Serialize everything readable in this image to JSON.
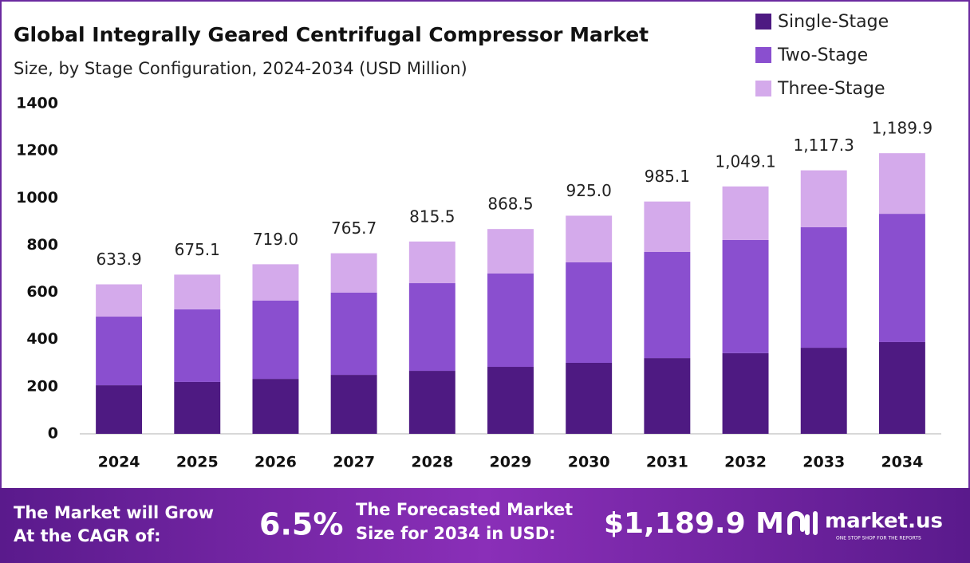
{
  "chart_data": {
    "type": "stacked-bar",
    "title": "Global Integrally Geared Centrifugal Compressor Market",
    "subtitle": "Size, by Stage Configuration, 2024-2034 (USD Million)",
    "categories": [
      "2024",
      "2025",
      "2026",
      "2027",
      "2028",
      "2029",
      "2030",
      "2031",
      "2032",
      "2033",
      "2034"
    ],
    "series": [
      {
        "name": "Single-Stage",
        "color": "#4e1a82",
        "values": [
          206,
          220,
          233,
          250,
          267,
          284,
          301,
          321,
          342,
          365,
          389
        ]
      },
      {
        "name": "Two-Stage",
        "color": "#8a4fcf",
        "values": [
          291,
          308,
          332,
          349,
          372,
          396,
          426,
          450,
          480,
          511,
          544
        ]
      },
      {
        "name": "Three-Stage",
        "color": "#d4aaeb",
        "values": [
          136.9,
          147.1,
          154.0,
          166.7,
          176.5,
          188.5,
          198.0,
          214.1,
          227.1,
          241.3,
          256.9
        ]
      }
    ],
    "totals": {
      "values": [
        633.9,
        675.1,
        719.0,
        765.7,
        815.5,
        868.5,
        925.0,
        985.1,
        1049.1,
        1117.3,
        1189.9
      ],
      "value_labels": [
        "633.9",
        "675.1",
        "719.0",
        "765.7",
        "815.5",
        "868.5",
        "925.0",
        "985.1",
        "1,049.1",
        "1,117.3",
        "1,189.9"
      ]
    },
    "ylim": [
      0,
      1400
    ],
    "yticks": [
      0,
      200,
      400,
      600,
      800,
      1000,
      1200,
      1400
    ],
    "grid": false,
    "legend": "top-right"
  },
  "footer": {
    "cagr_text": [
      "The Market will Grow",
      "At the CAGR of:"
    ],
    "cagr": "6.5%",
    "forecast_text": [
      "The Forecasted Market",
      "Size for 2034 in USD:"
    ],
    "forecast": "$1,189.9 M",
    "brand": "market.us",
    "tagline": "ONE STOP SHOP FOR THE REPORTS"
  }
}
